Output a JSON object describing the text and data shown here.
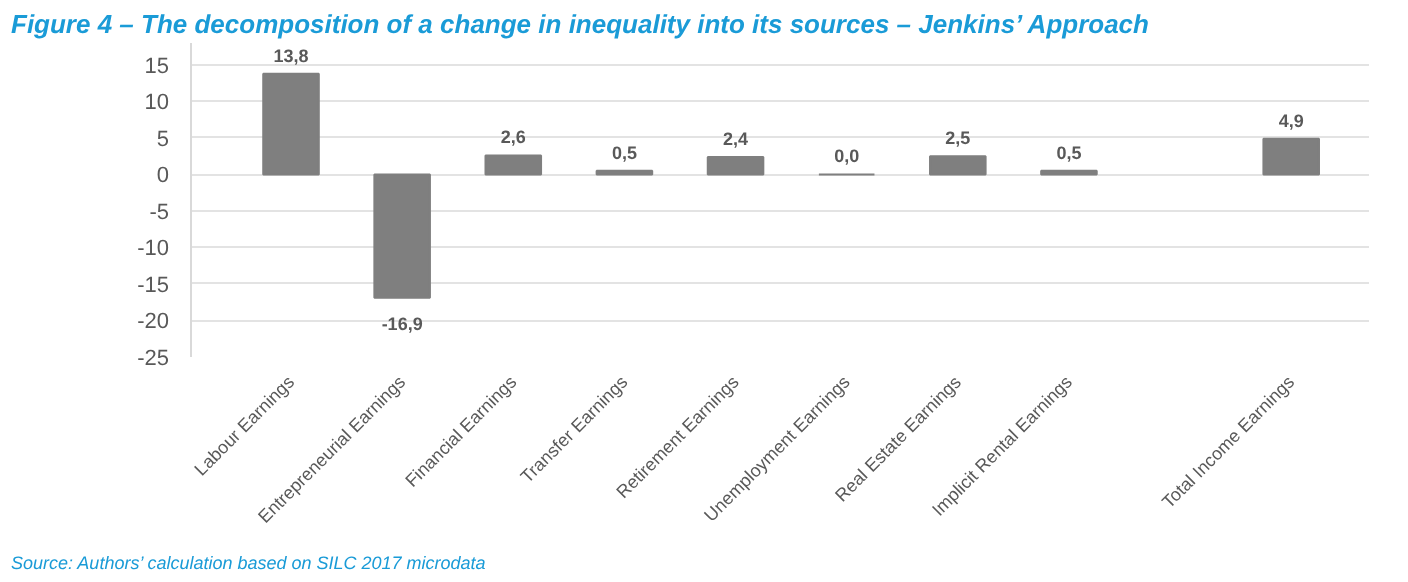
{
  "chart_data": {
    "type": "bar",
    "title": "Figure 4 – The decomposition of a change in inequality into its sources – Jenkins’ Approach",
    "categories": [
      "Labour Earnings",
      "Entrepreneurial Earnings",
      "Financial Earnings",
      "Transfer Earnings",
      "Retirement Earnings",
      "Unemployment Earnings",
      "Real Estate Earnings",
      "Implicit Rental Earnings",
      null,
      "Total Income Earnings"
    ],
    "values": [
      13.8,
      -16.9,
      2.6,
      0.5,
      2.4,
      0.0,
      2.5,
      0.5,
      null,
      4.9
    ],
    "value_labels": [
      "13,8",
      "-16,9",
      "2,6",
      "0,5",
      "2,4",
      "0,0",
      "2,5",
      "0,5",
      null,
      "4,9"
    ],
    "color": "#7f7f7f",
    "ylim": [
      -25,
      18
    ],
    "yticks": [
      -25,
      -20,
      -15,
      -10,
      -5,
      0,
      5,
      10,
      15
    ],
    "grid": "y",
    "annotations": [
      "Source: Authors’ calculation based on SILC 2017 microdata"
    ]
  }
}
